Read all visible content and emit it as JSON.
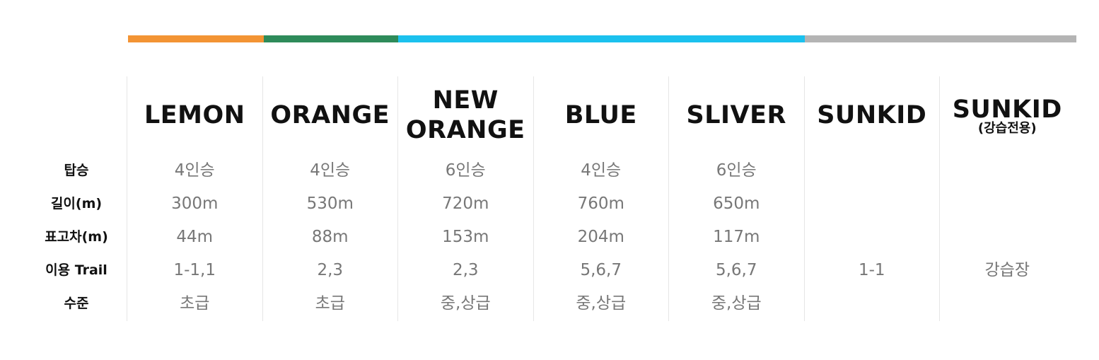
{
  "colors": {
    "lemon": "#f39434",
    "orange": "#2e8b5a",
    "blue": "#1bc1ee",
    "silver": "#b4b4b4"
  },
  "row_labels": [
    "탑승",
    "길이(m)",
    "표고차(m)",
    "이용 Trail",
    "수준"
  ],
  "lifts": [
    {
      "name": "LEMON",
      "sub": "",
      "cells": [
        "4인승",
        "300m",
        "44m",
        "1-1,1",
        "초급"
      ]
    },
    {
      "name": "ORANGE",
      "sub": "",
      "cells": [
        "4인승",
        "530m",
        "88m",
        "2,3",
        "초급"
      ]
    },
    {
      "name": "NEW\nORANGE",
      "sub": "",
      "cells": [
        "6인승",
        "720m",
        "153m",
        "2,3",
        "중,상급"
      ]
    },
    {
      "name": "BLUE",
      "sub": "",
      "cells": [
        "4인승",
        "760m",
        "204m",
        "5,6,7",
        "중,상급"
      ]
    },
    {
      "name": "SLIVER",
      "sub": "",
      "cells": [
        "6인승",
        "650m",
        "117m",
        "5,6,7",
        "중,상급"
      ]
    },
    {
      "name": "SUNKID",
      "sub": "",
      "cells": [
        "",
        "",
        "",
        "1-1",
        ""
      ]
    },
    {
      "name": "SUNKID",
      "sub": "(강습전용)",
      "cells": [
        "",
        "",
        "",
        "강습장",
        ""
      ]
    }
  ]
}
